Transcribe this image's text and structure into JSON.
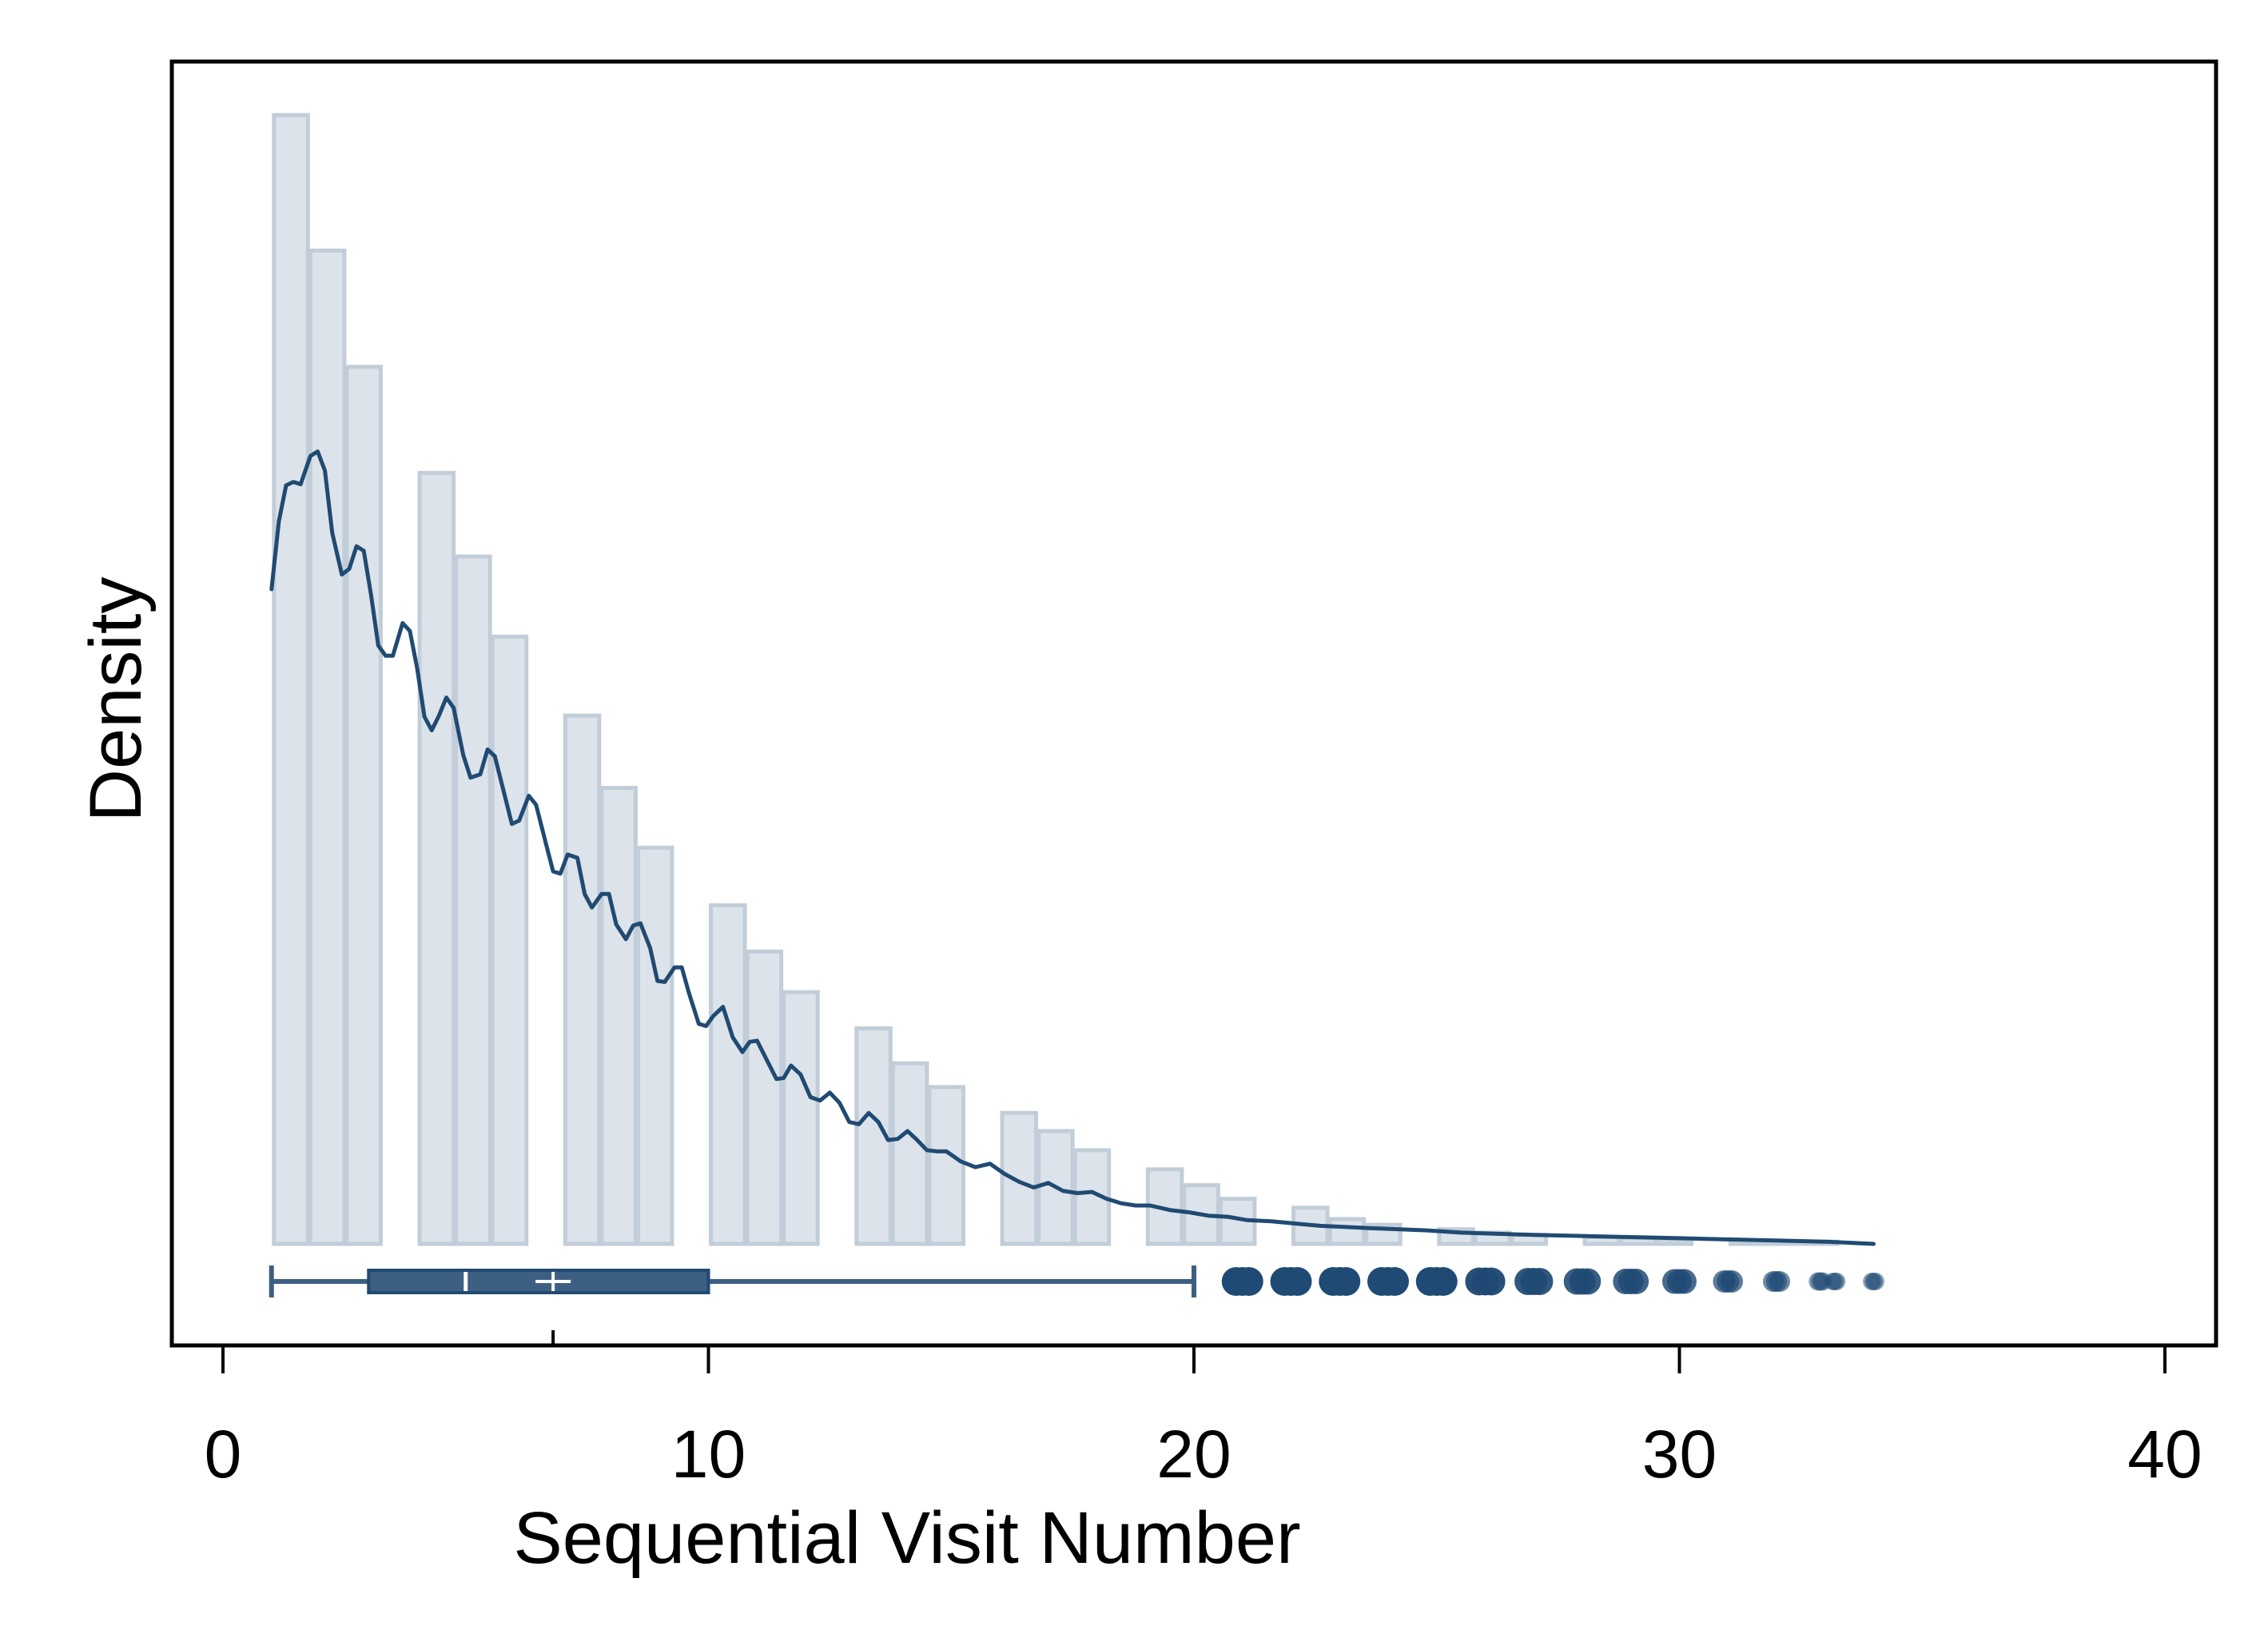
{
  "chart_data": {
    "type": "histogram-density-boxplot",
    "xlabel": "Sequential Visit Number",
    "ylabel": "Density",
    "xlim": [
      -1,
      41
    ],
    "x_ticks": [
      0,
      10,
      20,
      30,
      40
    ],
    "y_ticks_visible": false,
    "grid": false,
    "legend": "none",
    "histogram": {
      "bins": [
        {
          "x0": 1.05,
          "x1": 1.75,
          "value": 1.0
        },
        {
          "x0": 1.8,
          "x1": 2.5,
          "value": 0.88
        },
        {
          "x0": 2.55,
          "x1": 3.25,
          "value": 0.777
        },
        {
          "x0": 4.05,
          "x1": 4.75,
          "value": 0.683
        },
        {
          "x0": 4.8,
          "x1": 5.5,
          "value": 0.609
        },
        {
          "x0": 5.55,
          "x1": 6.25,
          "value": 0.538
        },
        {
          "x0": 7.05,
          "x1": 7.75,
          "value": 0.468
        },
        {
          "x0": 7.8,
          "x1": 8.5,
          "value": 0.404
        },
        {
          "x0": 8.55,
          "x1": 9.25,
          "value": 0.351
        },
        {
          "x0": 10.05,
          "x1": 10.75,
          "value": 0.3
        },
        {
          "x0": 10.8,
          "x1": 11.5,
          "value": 0.259
        },
        {
          "x0": 11.55,
          "x1": 12.25,
          "value": 0.223
        },
        {
          "x0": 13.05,
          "x1": 13.75,
          "value": 0.191
        },
        {
          "x0": 13.8,
          "x1": 14.5,
          "value": 0.16
        },
        {
          "x0": 14.55,
          "x1": 15.25,
          "value": 0.139
        },
        {
          "x0": 16.05,
          "x1": 16.75,
          "value": 0.116
        },
        {
          "x0": 16.8,
          "x1": 17.5,
          "value": 0.1
        },
        {
          "x0": 17.55,
          "x1": 18.25,
          "value": 0.083
        },
        {
          "x0": 19.05,
          "x1": 19.75,
          "value": 0.066
        },
        {
          "x0": 19.8,
          "x1": 20.5,
          "value": 0.052
        },
        {
          "x0": 20.55,
          "x1": 21.25,
          "value": 0.04
        },
        {
          "x0": 22.05,
          "x1": 22.75,
          "value": 0.032
        },
        {
          "x0": 22.8,
          "x1": 23.5,
          "value": 0.022
        },
        {
          "x0": 23.55,
          "x1": 24.25,
          "value": 0.017
        },
        {
          "x0": 25.05,
          "x1": 25.75,
          "value": 0.013
        },
        {
          "x0": 25.8,
          "x1": 26.5,
          "value": 0.01
        },
        {
          "x0": 26.55,
          "x1": 27.25,
          "value": 0.008
        },
        {
          "x0": 28.05,
          "x1": 28.75,
          "value": 0.006
        },
        {
          "x0": 28.8,
          "x1": 29.5,
          "value": 0.005
        },
        {
          "x0": 29.55,
          "x1": 30.25,
          "value": 0.004
        },
        {
          "x0": 31.05,
          "x1": 31.75,
          "value": 0.003
        },
        {
          "x0": 31.8,
          "x1": 32.5,
          "value": 0.002
        },
        {
          "x0": 32.55,
          "x1": 33.25,
          "value": 0.002
        }
      ]
    },
    "density_curve": {
      "x": [
        1.0,
        1.15,
        1.3,
        1.45,
        1.6,
        1.8,
        1.95,
        2.1,
        2.25,
        2.45,
        2.6,
        2.75,
        2.9,
        3.05,
        3.2,
        3.35,
        3.5,
        3.7,
        3.85,
        4.0,
        4.15,
        4.3,
        4.45,
        4.6,
        4.75,
        4.95,
        5.1,
        5.3,
        5.45,
        5.6,
        5.8,
        5.95,
        6.1,
        6.3,
        6.45,
        6.65,
        6.8,
        6.95,
        7.1,
        7.3,
        7.45,
        7.6,
        7.8,
        7.95,
        8.1,
        8.3,
        8.45,
        8.6,
        8.8,
        8.95,
        9.1,
        9.3,
        9.45,
        9.6,
        9.8,
        9.95,
        10.1,
        10.3,
        10.5,
        10.7,
        10.85,
        11.0,
        11.2,
        11.4,
        11.55,
        11.7,
        11.9,
        12.1,
        12.3,
        12.5,
        12.7,
        12.9,
        13.1,
        13.3,
        13.5,
        13.7,
        13.9,
        14.1,
        14.3,
        14.5,
        14.7,
        14.9,
        15.2,
        15.5,
        15.8,
        16.1,
        16.4,
        16.7,
        17.0,
        17.3,
        17.6,
        17.9,
        18.2,
        18.5,
        18.8,
        19.1,
        19.5,
        19.9,
        20.3,
        20.7,
        21.1,
        21.6,
        22.1,
        22.6,
        23.1,
        23.6,
        24.2,
        24.8,
        25.5,
        26.2,
        27.0,
        28.0,
        29.0,
        30.0,
        31.0,
        32.0,
        33.0,
        34.0
      ],
      "y": [
        0.58,
        0.64,
        0.672,
        0.675,
        0.673,
        0.698,
        0.702,
        0.685,
        0.63,
        0.593,
        0.598,
        0.618,
        0.614,
        0.575,
        0.53,
        0.521,
        0.521,
        0.55,
        0.543,
        0.51,
        0.467,
        0.455,
        0.468,
        0.484,
        0.475,
        0.433,
        0.413,
        0.416,
        0.438,
        0.432,
        0.398,
        0.372,
        0.375,
        0.397,
        0.389,
        0.355,
        0.33,
        0.328,
        0.345,
        0.342,
        0.31,
        0.298,
        0.31,
        0.31,
        0.283,
        0.27,
        0.282,
        0.284,
        0.262,
        0.233,
        0.232,
        0.245,
        0.245,
        0.222,
        0.195,
        0.193,
        0.202,
        0.21,
        0.183,
        0.17,
        0.179,
        0.18,
        0.163,
        0.146,
        0.147,
        0.158,
        0.15,
        0.13,
        0.127,
        0.134,
        0.125,
        0.108,
        0.106,
        0.116,
        0.108,
        0.092,
        0.093,
        0.1,
        0.092,
        0.083,
        0.082,
        0.082,
        0.073,
        0.068,
        0.071,
        0.062,
        0.055,
        0.05,
        0.054,
        0.047,
        0.045,
        0.046,
        0.04,
        0.036,
        0.034,
        0.034,
        0.03,
        0.028,
        0.025,
        0.024,
        0.021,
        0.02,
        0.018,
        0.016,
        0.015,
        0.014,
        0.013,
        0.012,
        0.01,
        0.009,
        0.008,
        0.007,
        0.006,
        0.005,
        0.004,
        0.003,
        0.002,
        0.0
      ]
    },
    "boxplot": {
      "whisker_low": 1,
      "q1": 3,
      "median": 5,
      "mean": 6.8,
      "q3": 10,
      "whisker_high": 20,
      "outliers": [
        {
          "x": 21,
          "size": 1.0
        },
        {
          "x": 22,
          "size": 1.0
        },
        {
          "x": 23,
          "size": 1.0
        },
        {
          "x": 24,
          "size": 1.0
        },
        {
          "x": 25,
          "size": 1.0
        },
        {
          "x": 26,
          "size": 0.95
        },
        {
          "x": 27,
          "size": 0.9
        },
        {
          "x": 28,
          "size": 0.85
        },
        {
          "x": 29,
          "size": 0.8
        },
        {
          "x": 30,
          "size": 0.75
        },
        {
          "x": 31,
          "size": 0.6
        },
        {
          "x": 32,
          "size": 0.5
        },
        {
          "x": 32.9,
          "size": 0.35
        },
        {
          "x": 33.2,
          "size": 0.3
        },
        {
          "x": 34,
          "size": 0.3
        }
      ]
    },
    "colors": {
      "bar_fill": "#dce3ea",
      "bar_edge": "#c1cdd8",
      "curve": "#204a72",
      "box_fill": "#3d5f82",
      "outlier": "#1f4a74",
      "frame": "#000000"
    }
  }
}
